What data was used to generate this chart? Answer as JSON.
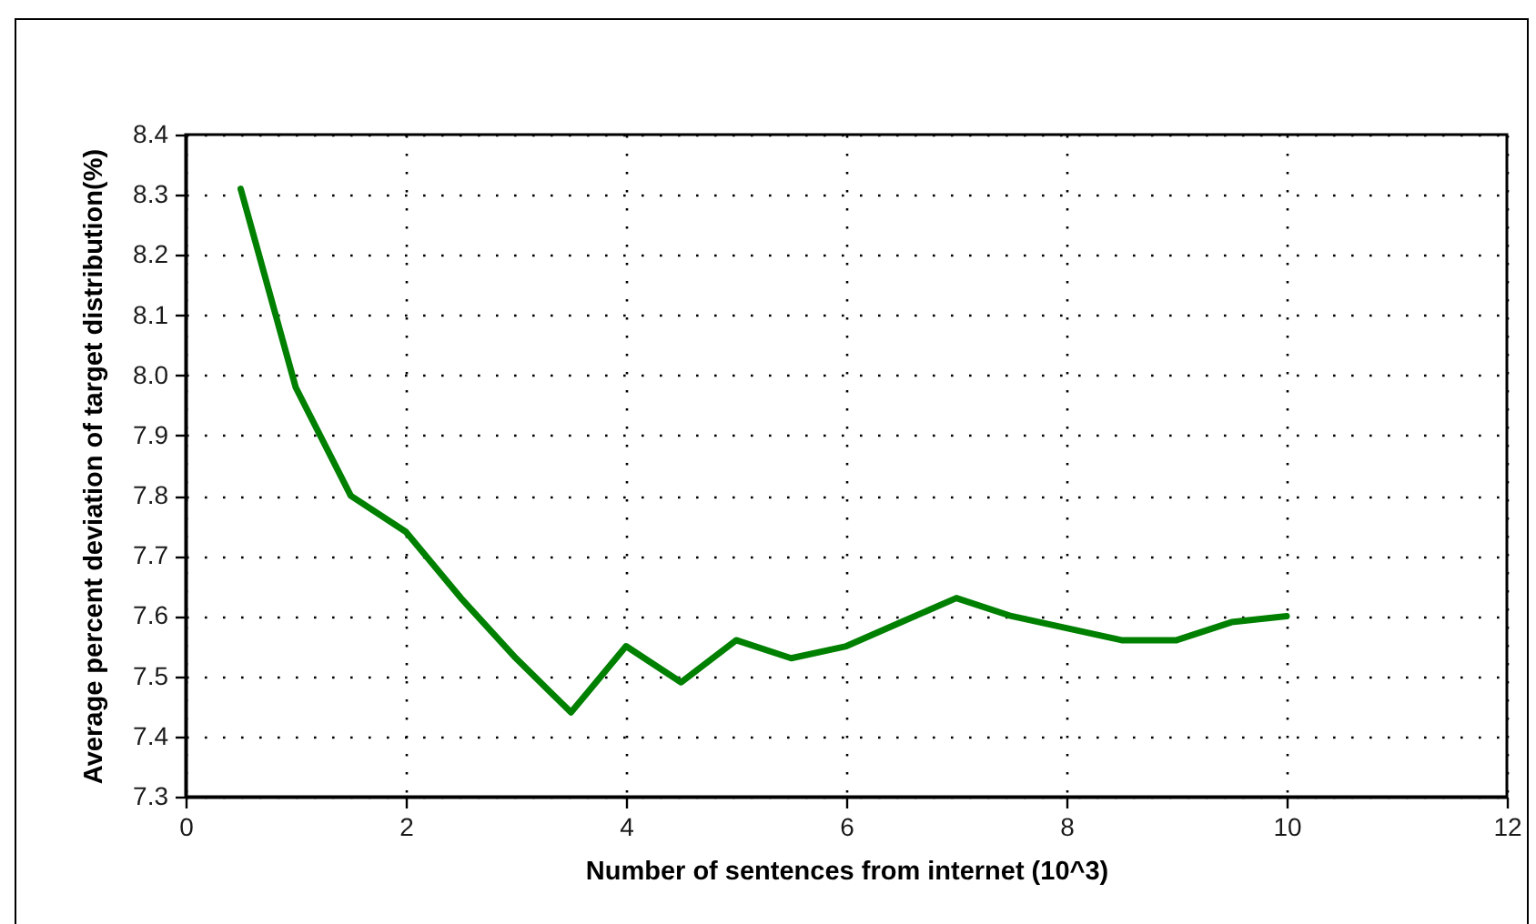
{
  "chart_data": {
    "type": "line",
    "xlabel": "Number of sentences from internet (10^3)",
    "ylabel": "Average percent deviation of target distribution(%)",
    "x": [
      0.5,
      1,
      1.5,
      2,
      2.5,
      3,
      3.5,
      4,
      4.5,
      5,
      5.5,
      6,
      6.5,
      7,
      7.5,
      8,
      8.5,
      9,
      9.5,
      10
    ],
    "series": [
      {
        "color": "#008000",
        "values": [
          8.31,
          7.98,
          7.8,
          7.74,
          7.63,
          7.53,
          7.44,
          7.55,
          7.49,
          7.56,
          7.53,
          7.55,
          7.59,
          7.63,
          7.6,
          7.58,
          7.56,
          7.56,
          7.59,
          7.6
        ]
      }
    ],
    "xlim": [
      0,
      12
    ],
    "xticks": [
      0,
      2,
      4,
      6,
      8,
      10,
      12
    ],
    "ylim": [
      7.3,
      8.4
    ],
    "yticks": [
      7.3,
      7.4,
      7.5,
      7.6,
      7.7,
      7.8,
      7.9,
      {
        "value": 8,
        "label": "8.0"
      },
      8.1,
      8.2,
      8.3,
      8.4
    ],
    "grid": true
  }
}
